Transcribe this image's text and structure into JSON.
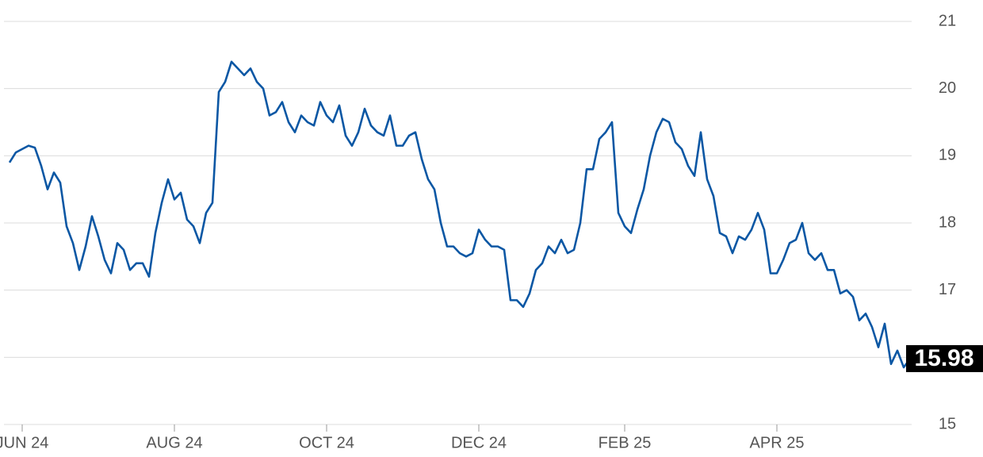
{
  "chart_data": {
    "type": "line",
    "categories": [
      null,
      null,
      "JUN 24",
      null,
      null,
      null,
      null,
      null,
      null,
      null,
      null,
      null,
      null,
      null,
      null,
      null,
      null,
      null,
      null,
      null,
      null,
      null,
      null,
      null,
      null,
      null,
      "AUG 24",
      null,
      null,
      null,
      null,
      null,
      null,
      null,
      null,
      null,
      null,
      null,
      null,
      null,
      null,
      null,
      null,
      null,
      null,
      null,
      null,
      null,
      null,
      null,
      "OCT 24",
      null,
      null,
      null,
      null,
      null,
      null,
      null,
      null,
      null,
      null,
      null,
      null,
      null,
      null,
      null,
      null,
      null,
      null,
      null,
      null,
      null,
      null,
      null,
      "DEC 24",
      null,
      null,
      null,
      null,
      null,
      null,
      null,
      null,
      null,
      null,
      null,
      null,
      null,
      null,
      null,
      null,
      null,
      null,
      null,
      null,
      null,
      null,
      "FEB 25",
      null,
      null,
      null,
      null,
      null,
      null,
      null,
      null,
      null,
      null,
      null,
      null,
      null,
      null,
      null,
      null,
      null,
      null,
      null,
      null,
      null,
      null,
      null,
      "APR 25",
      null,
      null,
      null,
      null,
      null,
      null,
      null,
      null,
      null,
      null,
      null,
      null,
      null,
      null,
      null,
      null,
      null,
      null,
      null,
      null,
      null
    ],
    "values": [
      18.9,
      19.05,
      19.1,
      19.15,
      19.12,
      18.85,
      18.5,
      18.75,
      18.6,
      17.95,
      17.7,
      17.3,
      17.65,
      18.1,
      17.8,
      17.45,
      17.25,
      17.7,
      17.6,
      17.3,
      17.4,
      17.4,
      17.2,
      17.85,
      18.3,
      18.65,
      18.35,
      18.45,
      18.05,
      17.95,
      17.7,
      18.15,
      18.3,
      19.95,
      20.1,
      20.4,
      20.3,
      20.2,
      20.3,
      20.1,
      20.0,
      19.6,
      19.65,
      19.8,
      19.5,
      19.35,
      19.6,
      19.5,
      19.45,
      19.8,
      19.6,
      19.5,
      19.75,
      19.3,
      19.15,
      19.35,
      19.7,
      19.45,
      19.35,
      19.3,
      19.6,
      19.15,
      19.15,
      19.3,
      19.35,
      18.95,
      18.65,
      18.5,
      18.0,
      17.65,
      17.65,
      17.55,
      17.5,
      17.55,
      17.9,
      17.75,
      17.65,
      17.65,
      17.6,
      16.85,
      16.85,
      16.75,
      16.95,
      17.3,
      17.4,
      17.65,
      17.55,
      17.75,
      17.55,
      17.6,
      18.0,
      18.8,
      18.8,
      19.25,
      19.35,
      19.5,
      18.15,
      17.95,
      17.85,
      18.2,
      18.5,
      19.0,
      19.35,
      19.55,
      19.5,
      19.2,
      19.1,
      18.85,
      18.7,
      19.35,
      18.65,
      18.4,
      17.85,
      17.8,
      17.55,
      17.8,
      17.75,
      17.9,
      18.15,
      17.9,
      17.25,
      17.25,
      17.45,
      17.7,
      17.75,
      18.0,
      17.55,
      17.45,
      17.55,
      17.3,
      17.3,
      16.95,
      17.0,
      16.9,
      16.55,
      16.65,
      16.45,
      16.15,
      16.5,
      15.9,
      16.1,
      15.85,
      15.98
    ],
    "color": "#0b57a4",
    "ylim": [
      15,
      21
    ],
    "yticks": [
      15,
      16,
      17,
      18,
      19,
      20,
      21
    ],
    "grid": true
  }
}
